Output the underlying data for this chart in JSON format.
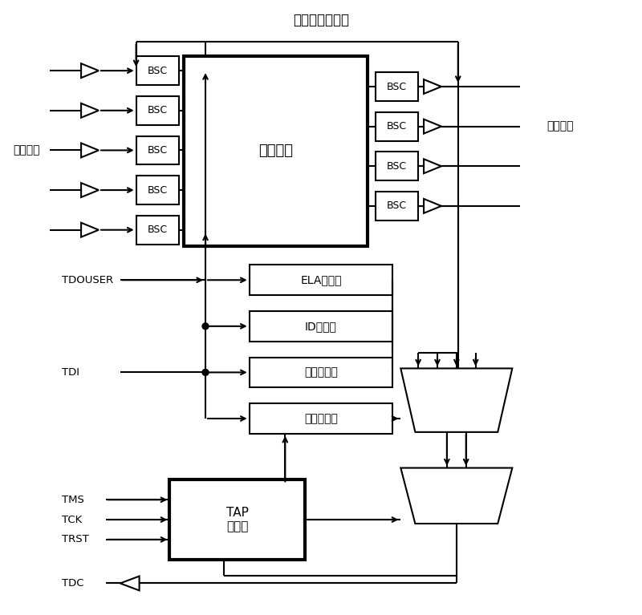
{
  "title": "边界扫描寄存器",
  "label_input": "输入引脚",
  "label_output": "输出引脚",
  "label_core": "核心逻辑",
  "label_bsc": "BSC",
  "label_ela": "ELA寄存器",
  "label_id": "ID寄存器",
  "label_bypass": "旁路寄存器",
  "label_instr": "指令寄存器",
  "label_tap": "TAP\n控制器",
  "label_tdouser": "TDOUSER",
  "label_tdi": "TDI",
  "label_tms": "TMS",
  "label_tck": "TCK",
  "label_trst": "TRST",
  "label_tdc": "TDC",
  "bg_color": "#ffffff",
  "line_color": "#000000"
}
